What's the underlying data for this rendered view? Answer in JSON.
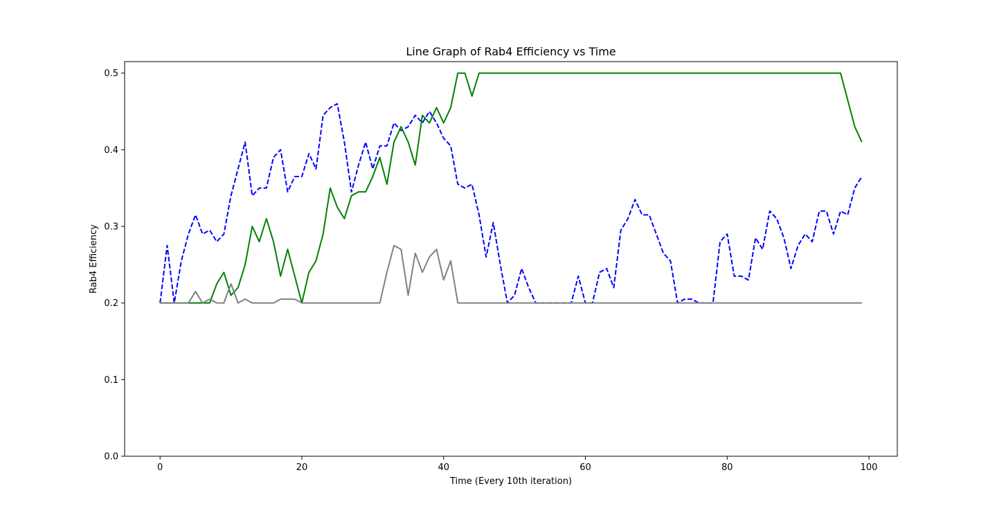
{
  "chart_data": {
    "type": "line",
    "title": "Line Graph of Rab4 Efficiency vs Time",
    "xlabel": "Time (Every 10th iteration)",
    "ylabel": "Rab4 Efficiency",
    "xlim": [
      -5,
      104
    ],
    "ylim": [
      0,
      0.515
    ],
    "xticks": [
      0,
      20,
      40,
      60,
      80,
      100
    ],
    "xtick_labels": [
      "0",
      "20",
      "40",
      "60",
      "80",
      "100"
    ],
    "yticks": [
      0.0,
      0.1,
      0.2,
      0.3,
      0.4,
      0.5
    ],
    "ytick_labels": [
      "0.0",
      "0.1",
      "0.2",
      "0.3",
      "0.4",
      "0.5"
    ],
    "grid": false,
    "legend": false,
    "series": [
      {
        "color": "#0000ff",
        "style": "dashed",
        "x": [
          0,
          1,
          2,
          3,
          4,
          5,
          6,
          7,
          8,
          9,
          10,
          11,
          12,
          13,
          14,
          15,
          16,
          17,
          18,
          19,
          20,
          21,
          22,
          23,
          24,
          25,
          26,
          27,
          28,
          29,
          30,
          31,
          32,
          33,
          34,
          35,
          36,
          37,
          38,
          39,
          40,
          41,
          42,
          43,
          44,
          45,
          46,
          47,
          48,
          49,
          50,
          51,
          52,
          53,
          54,
          55,
          56,
          57,
          58,
          59,
          60,
          61,
          62,
          63,
          64,
          65,
          66,
          67,
          68,
          69,
          70,
          71,
          72,
          73,
          74,
          75,
          76,
          77,
          78,
          79,
          80,
          81,
          82,
          83,
          84,
          85,
          86,
          87,
          88,
          89,
          90,
          91,
          92,
          93,
          94,
          95,
          96,
          97,
          98,
          99
        ],
        "values": [
          0.2,
          0.275,
          0.2,
          0.255,
          0.29,
          0.315,
          0.29,
          0.295,
          0.28,
          0.29,
          0.34,
          0.375,
          0.41,
          0.34,
          0.35,
          0.35,
          0.39,
          0.4,
          0.345,
          0.365,
          0.365,
          0.395,
          0.375,
          0.445,
          0.455,
          0.46,
          0.41,
          0.345,
          0.38,
          0.41,
          0.375,
          0.405,
          0.405,
          0.435,
          0.425,
          0.43,
          0.445,
          0.435,
          0.45,
          0.435,
          0.415,
          0.405,
          0.355,
          0.35,
          0.355,
          0.315,
          0.26,
          0.305,
          0.25,
          0.2,
          0.21,
          0.245,
          0.22,
          0.2,
          0.2,
          0.2,
          0.2,
          0.2,
          0.2,
          0.235,
          0.2,
          0.2,
          0.24,
          0.245,
          0.22,
          0.295,
          0.31,
          0.335,
          0.315,
          0.315,
          0.29,
          0.265,
          0.255,
          0.2,
          0.205,
          0.205,
          0.2,
          0.2,
          0.2,
          0.28,
          0.29,
          0.235,
          0.235,
          0.23,
          0.285,
          0.27,
          0.32,
          0.31,
          0.285,
          0.245,
          0.275,
          0.29,
          0.28,
          0.32,
          0.32,
          0.29,
          0.32,
          0.315,
          0.35,
          0.365
        ]
      },
      {
        "color": "#008000",
        "style": "solid",
        "x": [
          0,
          1,
          2,
          3,
          4,
          5,
          6,
          7,
          8,
          9,
          10,
          11,
          12,
          13,
          14,
          15,
          16,
          17,
          18,
          19,
          20,
          21,
          22,
          23,
          24,
          25,
          26,
          27,
          28,
          29,
          30,
          31,
          32,
          33,
          34,
          35,
          36,
          37,
          38,
          39,
          40,
          41,
          42,
          43,
          44,
          45,
          46,
          47,
          48,
          49,
          50,
          51,
          52,
          53,
          54,
          55,
          56,
          57,
          58,
          59,
          60,
          61,
          62,
          63,
          64,
          65,
          66,
          67,
          68,
          69,
          70,
          71,
          72,
          73,
          74,
          75,
          76,
          77,
          78,
          79,
          80,
          81,
          82,
          83,
          84,
          85,
          86,
          87,
          88,
          89,
          90,
          91,
          92,
          93,
          94,
          95,
          96,
          97,
          98,
          99
        ],
        "values": [
          0.2,
          0.2,
          0.2,
          0.2,
          0.2,
          0.2,
          0.2,
          0.2,
          0.225,
          0.24,
          0.21,
          0.22,
          0.25,
          0.3,
          0.28,
          0.31,
          0.28,
          0.235,
          0.27,
          0.235,
          0.2,
          0.24,
          0.255,
          0.29,
          0.35,
          0.325,
          0.31,
          0.34,
          0.345,
          0.345,
          0.365,
          0.39,
          0.355,
          0.41,
          0.43,
          0.41,
          0.38,
          0.445,
          0.435,
          0.455,
          0.435,
          0.455,
          0.5,
          0.5,
          0.47,
          0.5,
          0.5,
          0.5,
          0.5,
          0.5,
          0.5,
          0.5,
          0.5,
          0.5,
          0.5,
          0.5,
          0.5,
          0.5,
          0.5,
          0.5,
          0.5,
          0.5,
          0.5,
          0.5,
          0.5,
          0.5,
          0.5,
          0.5,
          0.5,
          0.5,
          0.5,
          0.5,
          0.5,
          0.5,
          0.5,
          0.5,
          0.5,
          0.5,
          0.5,
          0.5,
          0.5,
          0.5,
          0.5,
          0.5,
          0.5,
          0.5,
          0.5,
          0.5,
          0.5,
          0.5,
          0.5,
          0.5,
          0.5,
          0.5,
          0.5,
          0.5,
          0.5,
          0.465,
          0.43,
          0.41
        ]
      },
      {
        "color": "#808080",
        "style": "solid",
        "x": [
          0,
          1,
          2,
          3,
          4,
          5,
          6,
          7,
          8,
          9,
          10,
          11,
          12,
          13,
          14,
          15,
          16,
          17,
          18,
          19,
          20,
          21,
          22,
          23,
          24,
          25,
          26,
          27,
          28,
          29,
          30,
          31,
          32,
          33,
          34,
          35,
          36,
          37,
          38,
          39,
          40,
          41,
          42,
          43,
          44,
          45,
          46,
          47,
          48,
          49,
          50,
          51,
          52,
          53,
          54,
          55,
          56,
          57,
          58,
          59,
          60,
          61,
          62,
          63,
          64,
          65,
          66,
          67,
          68,
          69,
          70,
          71,
          72,
          73,
          74,
          75,
          76,
          77,
          78,
          79,
          80,
          81,
          82,
          83,
          84,
          85,
          86,
          87,
          88,
          89,
          90,
          91,
          92,
          93,
          94,
          95,
          96,
          97,
          98,
          99
        ],
        "values": [
          0.2,
          0.2,
          0.2,
          0.2,
          0.2,
          0.215,
          0.2,
          0.205,
          0.2,
          0.2,
          0.225,
          0.2,
          0.205,
          0.2,
          0.2,
          0.2,
          0.2,
          0.205,
          0.205,
          0.205,
          0.2,
          0.2,
          0.2,
          0.2,
          0.2,
          0.2,
          0.2,
          0.2,
          0.2,
          0.2,
          0.2,
          0.2,
          0.24,
          0.275,
          0.27,
          0.21,
          0.265,
          0.24,
          0.26,
          0.27,
          0.23,
          0.255,
          0.2,
          0.2,
          0.2,
          0.2,
          0.2,
          0.2,
          0.2,
          0.2,
          0.2,
          0.2,
          0.2,
          0.2,
          0.2,
          0.2,
          0.2,
          0.2,
          0.2,
          0.2,
          0.2,
          0.2,
          0.2,
          0.2,
          0.2,
          0.2,
          0.2,
          0.2,
          0.2,
          0.2,
          0.2,
          0.2,
          0.2,
          0.2,
          0.2,
          0.2,
          0.2,
          0.2,
          0.2,
          0.2,
          0.2,
          0.2,
          0.2,
          0.2,
          0.2,
          0.2,
          0.2,
          0.2,
          0.2,
          0.2,
          0.2,
          0.2,
          0.2,
          0.2,
          0.2,
          0.2,
          0.2,
          0.2,
          0.2,
          0.2
        ]
      }
    ]
  }
}
